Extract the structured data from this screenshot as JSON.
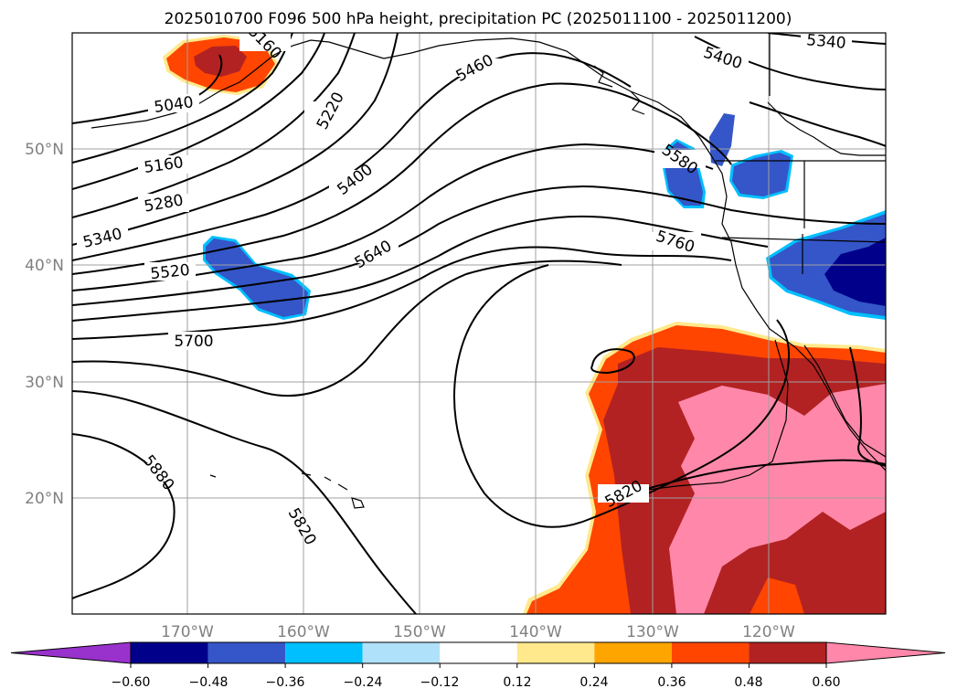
{
  "title": "2025010700 F096 500 hPa height, precipitation PC (2025011100 - 2025011200)",
  "map": {
    "lon_labels": [
      "170°W",
      "160°W",
      "150°W",
      "140°W",
      "130°W",
      "120°W"
    ],
    "lat_labels": [
      "50°N",
      "40°N",
      "30°N",
      "20°N"
    ],
    "contour_labels": [
      "5040",
      "5160",
      "5280",
      "5340",
      "5520",
      "5700",
      "5220",
      "5400",
      "5460",
      "5640",
      "5400",
      "5340",
      "5580",
      "5760",
      "5820",
      "5880",
      "5820",
      "5160"
    ]
  },
  "colorbar": {
    "ticks": [
      "−0.60",
      "−0.48",
      "−0.36",
      "−0.24",
      "−0.12",
      "0.12",
      "0.24",
      "0.36",
      "0.48",
      "0.60"
    ],
    "colors": [
      "#9932cc",
      "#00008b",
      "#3456c8",
      "#00bfff",
      "#afe1fa",
      "#ffffff",
      "#ffe98c",
      "#ffa500",
      "#ff4500",
      "#b22222",
      "#ff88aa"
    ]
  }
}
